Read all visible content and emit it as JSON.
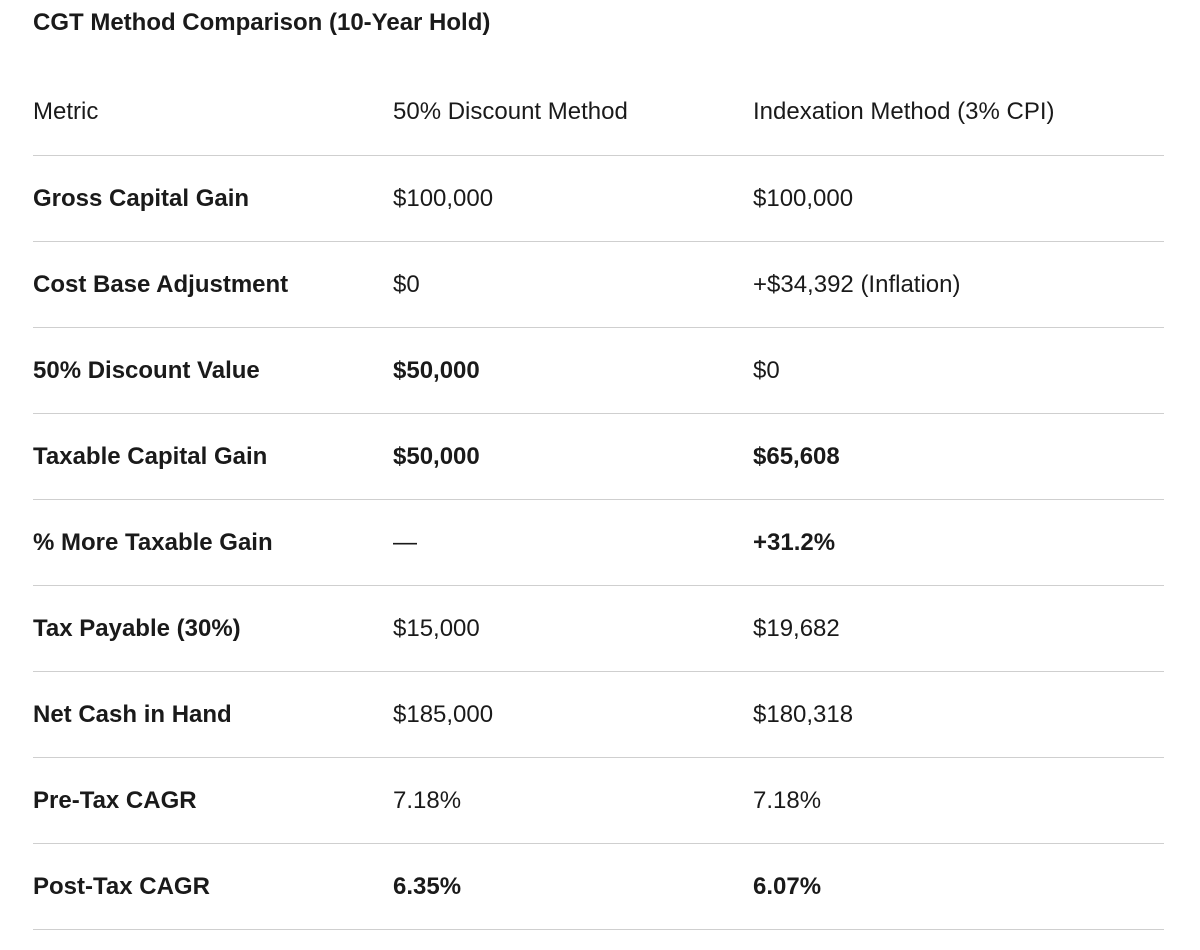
{
  "title": "CGT Method Comparison (10-Year Hold)",
  "columns": [
    "Metric",
    "50% Discount Method",
    "Indexation Method (3% CPI)"
  ],
  "rows": [
    {
      "metric": "Gross Capital Gain",
      "discount": "$100,000",
      "indexation": "$100,000"
    },
    {
      "metric": "Cost Base Adjustment",
      "discount": "$0",
      "indexation": "+$34,392 (Inflation)"
    },
    {
      "metric": "50% Discount Value",
      "discount": "$50,000",
      "indexation": "$0"
    },
    {
      "metric": "Taxable Capital Gain",
      "discount": "$50,000",
      "indexation": "$65,608"
    },
    {
      "metric": "% More Taxable Gain",
      "discount": "—",
      "indexation": "+31.2%"
    },
    {
      "metric": "Tax Payable (30%)",
      "discount": "$15,000",
      "indexation": "$19,682"
    },
    {
      "metric": "Net Cash in Hand",
      "discount": "$185,000",
      "indexation": "$180,318"
    },
    {
      "metric": "Pre-Tax CAGR",
      "discount": "7.18%",
      "indexation": "7.18%"
    },
    {
      "metric": "Post-Tax CAGR",
      "discount": "6.35%",
      "indexation": "6.07%"
    }
  ]
}
